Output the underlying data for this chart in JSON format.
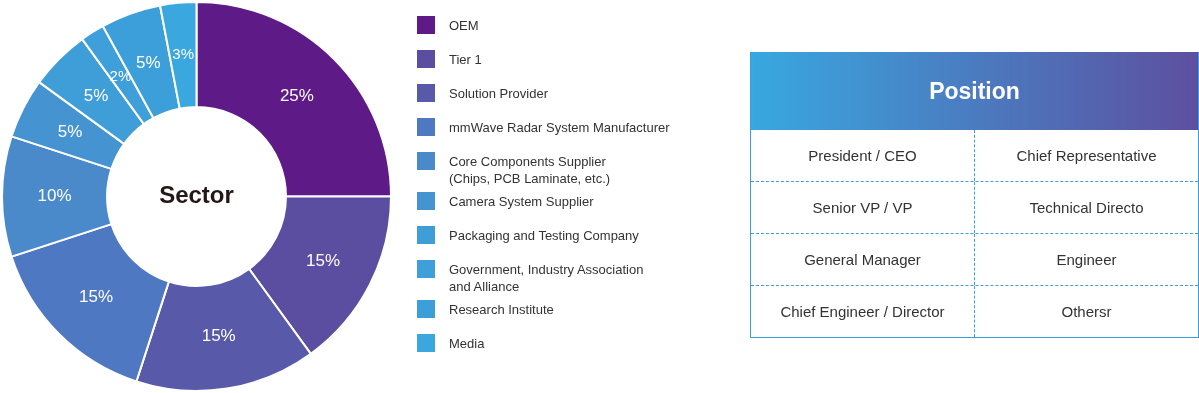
{
  "chart_data": [
    {
      "type": "donut",
      "title": "Sector",
      "categories": [
        "OEM",
        "Tier 1",
        "Solution Provider",
        "mmWave Radar System Manufacturer",
        "Core Components Supplier\n(Chips, PCB Laminate, etc.)",
        "Camera System Supplier",
        "Packaging and Testing Company",
        "Government, Industry Association\nand Alliance",
        "Research Institute",
        "Media"
      ],
      "values": [
        25,
        15,
        15,
        15,
        10,
        5,
        5,
        2,
        5,
        3
      ],
      "colors": [
        "#5e1a86",
        "#5b4d9f",
        "#5859a8",
        "#4f78c2",
        "#4a8acb",
        "#4693d1",
        "#3f9ed8",
        "#3e9fda",
        "#3d9fd9",
        "#3aa7df"
      ],
      "value_labels": [
        "25%",
        "15%",
        "15%",
        "15%",
        "10%",
        "5%",
        "5%",
        "2%",
        "5%",
        "3%"
      ],
      "legend": "right"
    },
    {
      "type": "other",
      "title": "Position",
      "annotations": [
        "President / CEO",
        "Chief Representative",
        "Senior VP / VP",
        "Technical Directo",
        "General Manager",
        "Engineer",
        "Chief Engineer / Director",
        "Othersr"
      ]
    }
  ]
}
